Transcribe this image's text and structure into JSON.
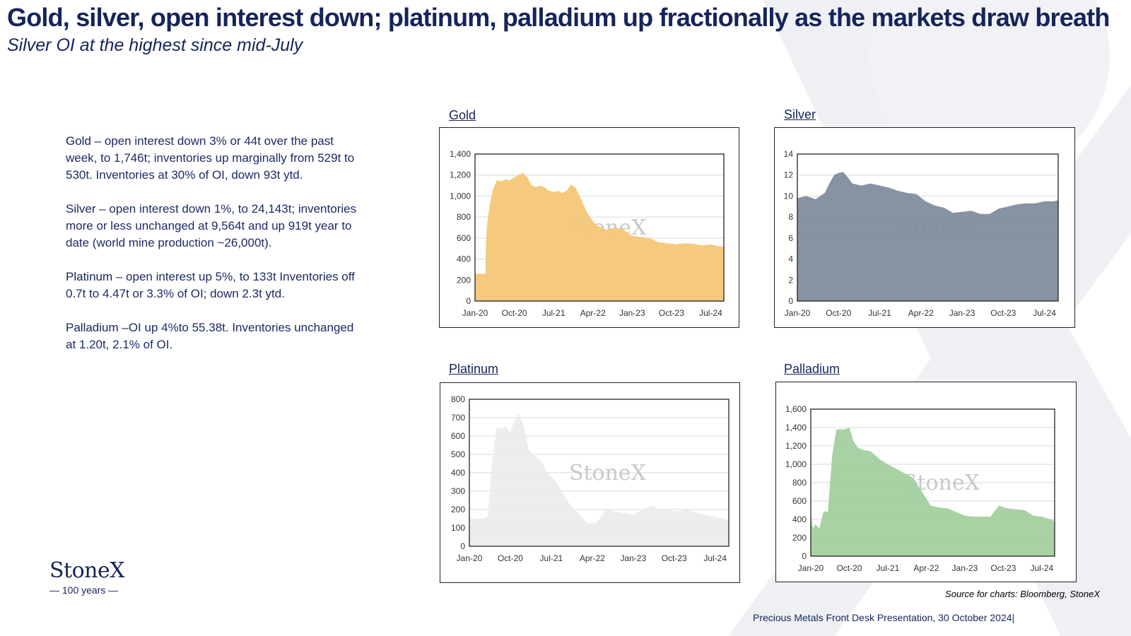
{
  "header": {
    "title": "Gold, silver, open interest down; platinum, palladium up fractionally as the markets draw breath",
    "subtitle": "Silver OI at the highest since mid-July"
  },
  "bullets": [
    {
      "metal": "Gold",
      "text": " – open interest down 3% or 44t over the past week, to 1,746t; inventories up marginally from 529t to 530t.  Inventories at 30% of OI, down 93t ytd."
    },
    {
      "metal": "Silver",
      "text": " – open interest down 1%, to 24,143t; inventories more or less unchanged at 9,564t and up 919t year to date (world mine production ~26,000t)."
    },
    {
      "metal": "Platinum",
      "text": " – open interest up 5%, to 133t Inventories off 0.7t to 4.47t or 3.3% of OI; down 2.3t ytd."
    },
    {
      "metal": "Palladium",
      "text": " –OI up 4%to 55.38t.  Inventories unchanged at 1.20t, 2.1% of OI."
    }
  ],
  "logo": {
    "wordmark": "StoneX",
    "tagline": "— 100 years —"
  },
  "watermark": "StoneX",
  "source": "Source for charts: Bloomberg, StoneX",
  "footer": "Precious Metals Front Desk Presentation, 30 October 2024|",
  "colors": {
    "navy": "#16245a",
    "gold": "#f4c777",
    "silver": "#7f8d9e",
    "platinum": "#ececec",
    "palladium": "#a3cf9f"
  },
  "chart_data": [
    {
      "type": "area",
      "panel": "Gold",
      "color": "#f4c777",
      "x_ticks": [
        "Jan-20",
        "Oct-20",
        "Jul-21",
        "Apr-22",
        "Jan-23",
        "Oct-23",
        "Jul-24"
      ],
      "ylim": [
        0,
        1400
      ],
      "y_ticks": [
        {
          "v": 0,
          "label": "0"
        },
        {
          "v": 200,
          "label": "200"
        },
        {
          "v": 400,
          "label": "400"
        },
        {
          "v": 600,
          "label": "600"
        },
        {
          "v": 800,
          "label": "800"
        },
        {
          "v": 1000,
          "label": "1,000"
        },
        {
          "v": 1200,
          "label": "1,200"
        },
        {
          "v": 1400,
          "label": "1,400"
        }
      ],
      "x": [
        0,
        2.4,
        2.5,
        2.7,
        3,
        4,
        5,
        6,
        7,
        8,
        9,
        10,
        11,
        12,
        13,
        14,
        15,
        16,
        17,
        18,
        19,
        20,
        21,
        22,
        23,
        24,
        25,
        26,
        27,
        28,
        30,
        32,
        34,
        36,
        38,
        40,
        42,
        44,
        46,
        48,
        50,
        52,
        54,
        56,
        57
      ],
      "y": [
        260,
        260,
        550,
        700,
        820,
        1050,
        1150,
        1140,
        1160,
        1150,
        1180,
        1200,
        1220,
        1180,
        1100,
        1090,
        1100,
        1080,
        1050,
        1040,
        1050,
        1030,
        1050,
        1110,
        1080,
        1000,
        900,
        820,
        760,
        720,
        680,
        700,
        680,
        620,
        610,
        600,
        560,
        550,
        540,
        550,
        545,
        530,
        540,
        520,
        520
      ]
    },
    {
      "type": "area",
      "panel": "Silver",
      "color": "#7f8d9e",
      "x_ticks": [
        "Jan-20",
        "Oct-20",
        "Jul-21",
        "Apr-22",
        "Jan-23",
        "Oct-23",
        "Jul-24"
      ],
      "ylim": [
        0,
        14
      ],
      "y_ticks": [
        {
          "v": 0,
          "label": "0"
        },
        {
          "v": 2,
          "label": "2"
        },
        {
          "v": 4,
          "label": "4"
        },
        {
          "v": 6,
          "label": "6"
        },
        {
          "v": 8,
          "label": "8"
        },
        {
          "v": 10,
          "label": "10"
        },
        {
          "v": 12,
          "label": "12"
        },
        {
          "v": 14,
          "label": "14"
        }
      ],
      "x": [
        0,
        2,
        4,
        6,
        7,
        8,
        9,
        10,
        11,
        12,
        14,
        16,
        18,
        20,
        22,
        24,
        26,
        28,
        30,
        32,
        34,
        36,
        38,
        40,
        42,
        44,
        46,
        48,
        50,
        52,
        54,
        56,
        57
      ],
      "y": [
        9.8,
        10,
        9.7,
        10.3,
        11.2,
        12,
        12.2,
        12.3,
        11.8,
        11.2,
        11,
        11.2,
        11,
        10.8,
        10.5,
        10.3,
        10.2,
        9.5,
        9.1,
        8.9,
        8.4,
        8.5,
        8.6,
        8.3,
        8.3,
        8.8,
        9,
        9.2,
        9.3,
        9.3,
        9.5,
        9.5,
        9.6
      ]
    },
    {
      "type": "area",
      "panel": "Platinum",
      "color": "#ececec",
      "x_ticks": [
        "Jan-20",
        "Oct-20",
        "Jul-21",
        "Apr-22",
        "Jan-23",
        "Oct-23",
        "Jul-24"
      ],
      "ylim": [
        0,
        800
      ],
      "y_ticks": [
        {
          "v": 0,
          "label": "0"
        },
        {
          "v": 100,
          "label": "100"
        },
        {
          "v": 200,
          "label": "200"
        },
        {
          "v": 300,
          "label": "300"
        },
        {
          "v": 400,
          "label": "400"
        },
        {
          "v": 500,
          "label": "500"
        },
        {
          "v": 600,
          "label": "600"
        },
        {
          "v": 700,
          "label": "700"
        },
        {
          "v": 800,
          "label": "800"
        }
      ],
      "x": [
        0,
        2,
        3,
        4,
        5,
        5.5,
        6,
        7,
        8,
        9,
        10,
        11,
        12,
        13,
        14,
        15,
        16,
        17,
        18,
        19,
        20,
        21,
        22,
        23,
        24,
        26,
        28,
        30,
        32,
        34,
        36,
        38,
        40,
        42,
        44,
        46,
        48,
        50,
        52,
        54,
        56,
        57
      ],
      "y": [
        150,
        150,
        150,
        160,
        450,
        550,
        650,
        640,
        650,
        620,
        690,
        720,
        650,
        530,
        500,
        480,
        460,
        400,
        380,
        350,
        310,
        270,
        230,
        200,
        180,
        120,
        130,
        200,
        190,
        180,
        170,
        200,
        220,
        200,
        195,
        190,
        200,
        180,
        170,
        160,
        150,
        140
      ]
    },
    {
      "type": "area",
      "panel": "Palladium",
      "color": "#a3cf9f",
      "x_ticks": [
        "Jan-20",
        "Oct-20",
        "Jul-21",
        "Apr-22",
        "Jan-23",
        "Oct-23",
        "Jul-24"
      ],
      "ylim": [
        0,
        1600
      ],
      "y_ticks": [
        {
          "v": 0,
          "label": "0"
        },
        {
          "v": 200,
          "label": "200"
        },
        {
          "v": 400,
          "label": "400"
        },
        {
          "v": 600,
          "label": "600"
        },
        {
          "v": 800,
          "label": "800"
        },
        {
          "v": 1000,
          "label": "1,000"
        },
        {
          "v": 1200,
          "label": "1,200"
        },
        {
          "v": 1400,
          "label": "1,400"
        },
        {
          "v": 1600,
          "label": "1,600"
        }
      ],
      "x": [
        0,
        0.3,
        0.6,
        1,
        2,
        3,
        4,
        5,
        6,
        7,
        8,
        9,
        10,
        11,
        12,
        13,
        14,
        16,
        18,
        20,
        22,
        24,
        26,
        28,
        30,
        32,
        34,
        36,
        38,
        40,
        42,
        44,
        46,
        48,
        50,
        52,
        54,
        56,
        57
      ],
      "y": [
        500,
        350,
        300,
        350,
        300,
        490,
        480,
        1100,
        1380,
        1380,
        1380,
        1400,
        1250,
        1180,
        1160,
        1150,
        1140,
        1060,
        1000,
        950,
        900,
        850,
        700,
        550,
        530,
        520,
        480,
        440,
        430,
        430,
        430,
        550,
        520,
        510,
        500,
        440,
        430,
        400,
        380
      ]
    }
  ]
}
